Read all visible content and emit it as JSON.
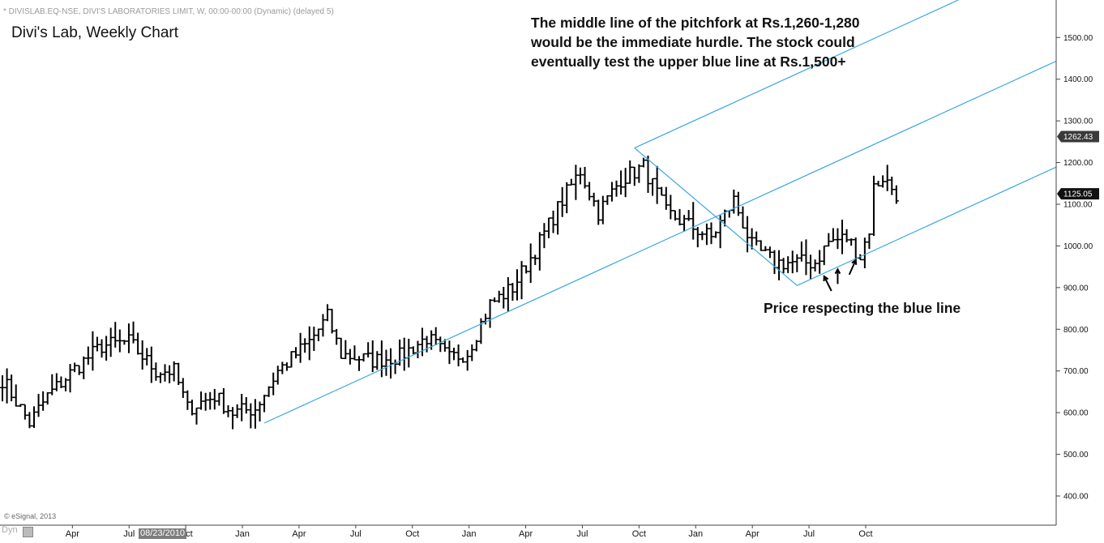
{
  "header": {
    "info_line": "* DIVISLAB.EQ-NSE, DIVI'S LABORATORIES LIMIT, W, 00:00-00:00 (Dynamic) (delayed 5)",
    "title": "Divi's Lab, Weekly Chart"
  },
  "annotations": {
    "main": "The middle line of the pitchfork at Rs.1,260-1,280 would be the immediate hurdle. The stock could eventually test the upper blue line at Rs.1,500+",
    "support": "Price respecting the blue line"
  },
  "footer": {
    "copyright": "© eSignal, 2013",
    "dyn_label": "Dyn",
    "date_badge": "08/23/2010"
  },
  "colors": {
    "background": "#ffffff",
    "bars": "#000000",
    "pitchfork": "#3aa6e3",
    "price_tag": "#3a3a3a"
  },
  "chart_data": {
    "type": "ohlc",
    "timeframe": "weekly",
    "symbol": "DIVISLAB.EQ-NSE",
    "ylim": [
      330,
      1590
    ],
    "y_ticks": [
      400,
      500,
      600,
      700,
      800,
      900,
      1000,
      1100,
      1200,
      1300,
      1400,
      1500
    ],
    "y_tick_labels": [
      "400.00",
      "500.00",
      "600.00",
      "700.00",
      "800.00",
      "900.00",
      "1000.00",
      "1100.00",
      "1200.00",
      "1300.00",
      "1400.00",
      "1500.00"
    ],
    "x_ticks": [
      "Apr",
      "Jul",
      "Oct",
      "Jan",
      "Apr",
      "Jul",
      "Oct",
      "Jan",
      "Apr",
      "Jul",
      "Oct",
      "Jan",
      "Apr",
      "Jul",
      "Oct"
    ],
    "price_tags": [
      {
        "label": "1262.43",
        "value": 1262.43,
        "style": "outline"
      },
      {
        "label": "1125.05",
        "value": 1125.05,
        "style": "filled"
      }
    ],
    "anchors": [
      {
        "week": 0,
        "close": 680
      },
      {
        "week": 6,
        "close": 575
      },
      {
        "week": 10,
        "close": 640
      },
      {
        "week": 16,
        "close": 705
      },
      {
        "week": 22,
        "close": 760
      },
      {
        "week": 28,
        "close": 770
      },
      {
        "week": 34,
        "close": 700
      },
      {
        "week": 38,
        "close": 700
      },
      {
        "week": 41,
        "close": 610
      },
      {
        "week": 47,
        "close": 640
      },
      {
        "week": 51,
        "close": 600
      },
      {
        "week": 56,
        "close": 610
      },
      {
        "week": 61,
        "close": 700
      },
      {
        "week": 68,
        "close": 770
      },
      {
        "week": 72,
        "close": 830
      },
      {
        "week": 75,
        "close": 740
      },
      {
        "week": 82,
        "close": 725
      },
      {
        "week": 88,
        "close": 735
      },
      {
        "week": 94,
        "close": 780
      },
      {
        "week": 99,
        "close": 730
      },
      {
        "week": 103,
        "close": 745
      },
      {
        "week": 108,
        "close": 860
      },
      {
        "week": 113,
        "close": 900
      },
      {
        "week": 118,
        "close": 990
      },
      {
        "week": 124,
        "close": 1110
      },
      {
        "week": 128,
        "close": 1180
      },
      {
        "week": 132,
        "close": 1080
      },
      {
        "week": 137,
        "close": 1160
      },
      {
        "week": 142,
        "close": 1190
      },
      {
        "week": 147,
        "close": 1080
      },
      {
        "week": 152,
        "close": 1050
      },
      {
        "week": 157,
        "close": 1020
      },
      {
        "week": 162,
        "close": 1110
      },
      {
        "week": 166,
        "close": 1000
      },
      {
        "week": 171,
        "close": 960
      },
      {
        "week": 176,
        "close": 960
      },
      {
        "week": 180,
        "close": 960
      },
      {
        "week": 183,
        "close": 1010
      },
      {
        "week": 187,
        "close": 1020
      },
      {
        "week": 190,
        "close": 975
      },
      {
        "week": 192,
        "close": 1040
      },
      {
        "week": 193,
        "close": 1140
      },
      {
        "week": 195,
        "close": 1165
      },
      {
        "week": 198,
        "close": 1125
      }
    ],
    "pitchfork": {
      "pivot_a": {
        "week": 58,
        "price": 575
      },
      "pivot_b": {
        "week": 140,
        "price": 1235
      },
      "pivot_c": {
        "week": 176,
        "price": 905
      }
    }
  }
}
